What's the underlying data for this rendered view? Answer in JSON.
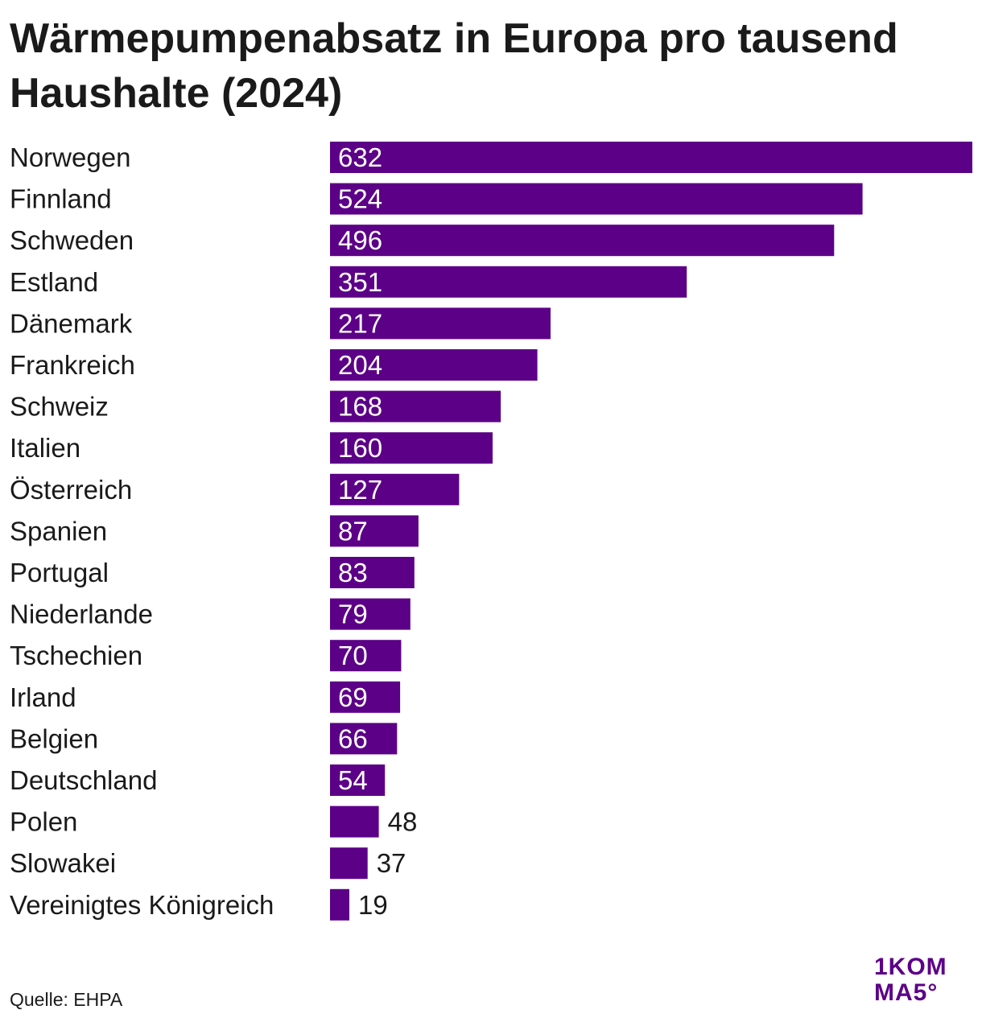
{
  "colors": {
    "bar": "#5c0087",
    "label_inside": "#ffffff",
    "label_outside": "#1a1a1a",
    "logo": "#5c0087"
  },
  "source": "Quelle: EHPA",
  "logo": {
    "line1": "1KOM",
    "line2": "MA5°"
  },
  "chart_data": {
    "type": "bar",
    "orientation": "horizontal",
    "title": "Wärmepumpenabsatz in Europa pro tausend Haushalte (2024)",
    "categories": [
      "Norwegen",
      "Finnland",
      "Schweden",
      "Estland",
      "Dänemark",
      "Frankreich",
      "Schweiz",
      "Italien",
      "Österreich",
      "Spanien",
      "Portugal",
      "Niederlande",
      "Tschechien",
      "Irland",
      "Belgien",
      "Deutschland",
      "Polen",
      "Slowakei",
      "Vereinigtes Königreich"
    ],
    "values": [
      632,
      524,
      496,
      351,
      217,
      204,
      168,
      160,
      127,
      87,
      83,
      79,
      70,
      69,
      66,
      54,
      48,
      37,
      19
    ],
    "xlim": [
      0,
      632
    ],
    "grid": false,
    "legend": "none",
    "data_labels": true
  }
}
